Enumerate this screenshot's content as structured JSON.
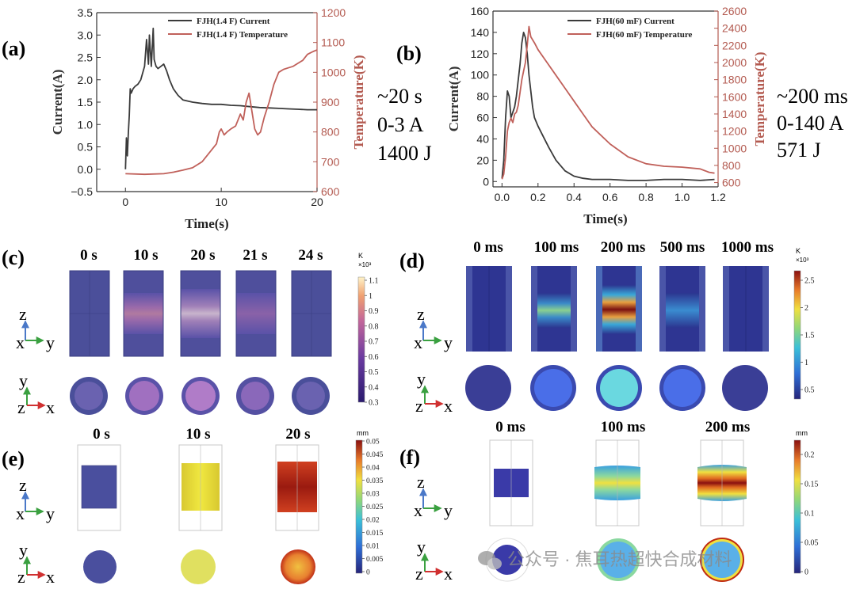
{
  "panels": {
    "a": {
      "letter": "(a)",
      "annot": [
        "~20 s",
        "0-3 A",
        "1400 J"
      ]
    },
    "b": {
      "letter": "(b)",
      "annot": [
        "~200 ms",
        "0-140 A",
        "571 J"
      ]
    },
    "c": {
      "letter": "(c)",
      "times": [
        "0 s",
        "10 s",
        "20 s",
        "21 s",
        "24 s"
      ],
      "colorbar": {
        "unit": "K",
        "exp": "×10³",
        "ticks": [
          "1.1",
          "1",
          "0.9",
          "0.8",
          "0.7",
          "0.6",
          "0.5",
          "0.4",
          "0.3"
        ]
      }
    },
    "d": {
      "letter": "(d)",
      "times": [
        "0 ms",
        "100 ms",
        "200 ms",
        "500 ms",
        "1000 ms"
      ],
      "colorbar": {
        "unit": "K",
        "exp": "×10³",
        "ticks": [
          "2.5",
          "2",
          "1.5",
          "1",
          "0.5"
        ]
      }
    },
    "e": {
      "letter": "(e)",
      "times": [
        "0 s",
        "10 s",
        "20 s"
      ],
      "colorbar": {
        "unit": "mm",
        "ticks": [
          "0.05",
          "0.045",
          "0.04",
          "0.035",
          "0.03",
          "0.025",
          "0.02",
          "0.015",
          "0.01",
          "0.005",
          "0"
        ]
      }
    },
    "f": {
      "letter": "(f)",
      "times": [
        "0 ms",
        "100 ms",
        "200 ms"
      ],
      "colorbar": {
        "unit": "mm",
        "ticks": [
          "0.2",
          "0.15",
          "0.1",
          "0.05",
          "0"
        ]
      }
    }
  },
  "axes_labels": {
    "z": "z",
    "x": "x",
    "y": "y"
  },
  "watermark": {
    "text": "公众号 · 焦耳热超快合成材料"
  },
  "colors": {
    "current": "#3a3a3a",
    "temperature": "#c0605a",
    "temp_axis": "#b35a50",
    "cylinder": "#4b4f9a"
  },
  "chart_data": [
    {
      "type": "line",
      "id": "a",
      "xlabel": "Time(s)",
      "ylabel": "Current(A)",
      "y2label": "Temperature(K)",
      "xlim": [
        -3,
        20
      ],
      "ylim": [
        -0.5,
        3.5
      ],
      "y2lim": [
        600,
        1200
      ],
      "xticks": [
        0,
        10,
        20
      ],
      "yticks": [
        -0.5,
        0.0,
        0.5,
        1.0,
        1.5,
        2.0,
        2.5,
        3.0,
        3.5
      ],
      "y2ticks": [
        600,
        700,
        800,
        900,
        1000,
        1100,
        1200
      ],
      "xtick_labels": [
        "0",
        "10",
        "20"
      ],
      "ytick_labels": [
        "−0.5",
        "0.0",
        "0.5",
        "1.0",
        "1.5",
        "2.0",
        "2.5",
        "3.0",
        "3.5"
      ],
      "y2tick_labels": [
        "600",
        "700",
        "800",
        "900",
        "1000",
        "1100",
        "1200"
      ],
      "legend": [
        "FJH(1.4 F) Current",
        "FJH(1.4 F) Temperature"
      ],
      "series": [
        {
          "name": "FJH(1.4 F) Current",
          "axis": "left",
          "color": "#3a3a3a",
          "x": [
            0,
            0.1,
            0.2,
            0.3,
            0.4,
            0.5,
            0.6,
            0.7,
            0.8,
            1.0,
            1.3,
            1.6,
            2.0,
            2.2,
            2.4,
            2.5,
            2.7,
            2.9,
            3.0,
            3.2,
            3.4,
            3.7,
            4.0,
            4.3,
            4.6,
            5.0,
            5.5,
            6.0,
            7.0,
            8.0,
            9.0,
            10,
            11,
            12,
            13,
            14,
            15,
            16,
            17,
            18,
            19,
            20
          ],
          "y": [
            0.0,
            0.7,
            0.3,
            0.8,
            1.2,
            1.8,
            1.7,
            1.75,
            1.8,
            1.85,
            1.9,
            2.0,
            2.3,
            2.9,
            2.35,
            3.0,
            2.3,
            3.15,
            2.45,
            2.3,
            2.25,
            2.3,
            2.35,
            2.2,
            2.0,
            1.8,
            1.65,
            1.55,
            1.5,
            1.47,
            1.45,
            1.45,
            1.43,
            1.42,
            1.4,
            1.38,
            1.37,
            1.36,
            1.35,
            1.34,
            1.33,
            1.33
          ]
        },
        {
          "name": "FJH(1.4 F) Temperature",
          "axis": "right",
          "color": "#c0605a",
          "x": [
            0,
            2,
            4,
            5,
            6,
            7,
            8,
            9,
            9.5,
            9.8,
            10.0,
            10.3,
            10.6,
            11.0,
            11.5,
            12.0,
            12.3,
            12.6,
            12.9,
            13.2,
            13.5,
            13.8,
            14.1,
            14.5,
            15.0,
            15.5,
            16.0,
            16.5,
            17.0,
            17.5,
            18.0,
            18.5,
            19.0,
            19.3,
            19.6,
            20
          ],
          "y": [
            660,
            658,
            660,
            665,
            672,
            680,
            700,
            740,
            760,
            800,
            810,
            790,
            800,
            810,
            820,
            860,
            840,
            900,
            930,
            870,
            810,
            790,
            800,
            850,
            900,
            960,
            1000,
            1010,
            1015,
            1020,
            1030,
            1040,
            1060,
            1065,
            1070,
            1075
          ]
        }
      ]
    },
    {
      "type": "line",
      "id": "b",
      "xlabel": "Time(s)",
      "ylabel": "Current(A)",
      "y2label": "Temperature(K)",
      "xlim": [
        -0.05,
        1.2
      ],
      "ylim": [
        -5,
        160
      ],
      "y2lim": [
        550,
        2600
      ],
      "xticks": [
        0,
        0.2,
        0.4,
        0.6,
        0.8,
        1.0,
        1.2
      ],
      "yticks": [
        0,
        20,
        40,
        60,
        80,
        100,
        120,
        140,
        160
      ],
      "y2ticks": [
        600,
        800,
        1000,
        1200,
        1400,
        1600,
        1800,
        2000,
        2200,
        2400,
        2600
      ],
      "xtick_labels": [
        "0.0",
        "0.2",
        "0.4",
        "0.6",
        "0.8",
        "1.0",
        "1.2"
      ],
      "ytick_labels": [
        "0",
        "20",
        "40",
        "60",
        "80",
        "100",
        "120",
        "140",
        "160"
      ],
      "y2tick_labels": [
        "600",
        "800",
        "1000",
        "1200",
        "1400",
        "1600",
        "1800",
        "2000",
        "2200",
        "2400",
        "2600"
      ],
      "legend": [
        "FJH(60 mF) Current",
        "FJH(60 mF) Temperature"
      ],
      "series": [
        {
          "name": "FJH(60 mF) Current",
          "axis": "left",
          "color": "#3a3a3a",
          "x": [
            0,
            0.01,
            0.02,
            0.03,
            0.04,
            0.05,
            0.06,
            0.07,
            0.08,
            0.09,
            0.1,
            0.11,
            0.12,
            0.13,
            0.14,
            0.15,
            0.16,
            0.17,
            0.18,
            0.2,
            0.23,
            0.26,
            0.3,
            0.35,
            0.4,
            0.45,
            0.5,
            0.6,
            0.7,
            0.8,
            0.9,
            1.0,
            1.1,
            1.18
          ],
          "y": [
            3,
            20,
            60,
            85,
            80,
            60,
            65,
            70,
            80,
            95,
            110,
            130,
            140,
            135,
            120,
            100,
            85,
            70,
            60,
            52,
            42,
            32,
            20,
            10,
            5,
            3,
            2,
            2,
            1,
            1,
            2,
            2,
            1,
            2
          ]
        },
        {
          "name": "FJH(60 mF) Temperature",
          "axis": "right",
          "color": "#c0605a",
          "x": [
            0,
            0.01,
            0.02,
            0.03,
            0.04,
            0.05,
            0.06,
            0.07,
            0.08,
            0.09,
            0.1,
            0.11,
            0.12,
            0.13,
            0.14,
            0.15,
            0.16,
            0.18,
            0.2,
            0.25,
            0.3,
            0.35,
            0.4,
            0.45,
            0.5,
            0.6,
            0.7,
            0.8,
            0.9,
            1.0,
            1.1,
            1.15,
            1.18
          ],
          "y": [
            640,
            700,
            900,
            1200,
            1300,
            1350,
            1300,
            1400,
            1420,
            1500,
            1650,
            1800,
            1900,
            2000,
            2200,
            2420,
            2300,
            2230,
            2150,
            2000,
            1850,
            1700,
            1550,
            1400,
            1250,
            1050,
            900,
            820,
            790,
            780,
            760,
            720,
            710
          ]
        }
      ]
    }
  ]
}
